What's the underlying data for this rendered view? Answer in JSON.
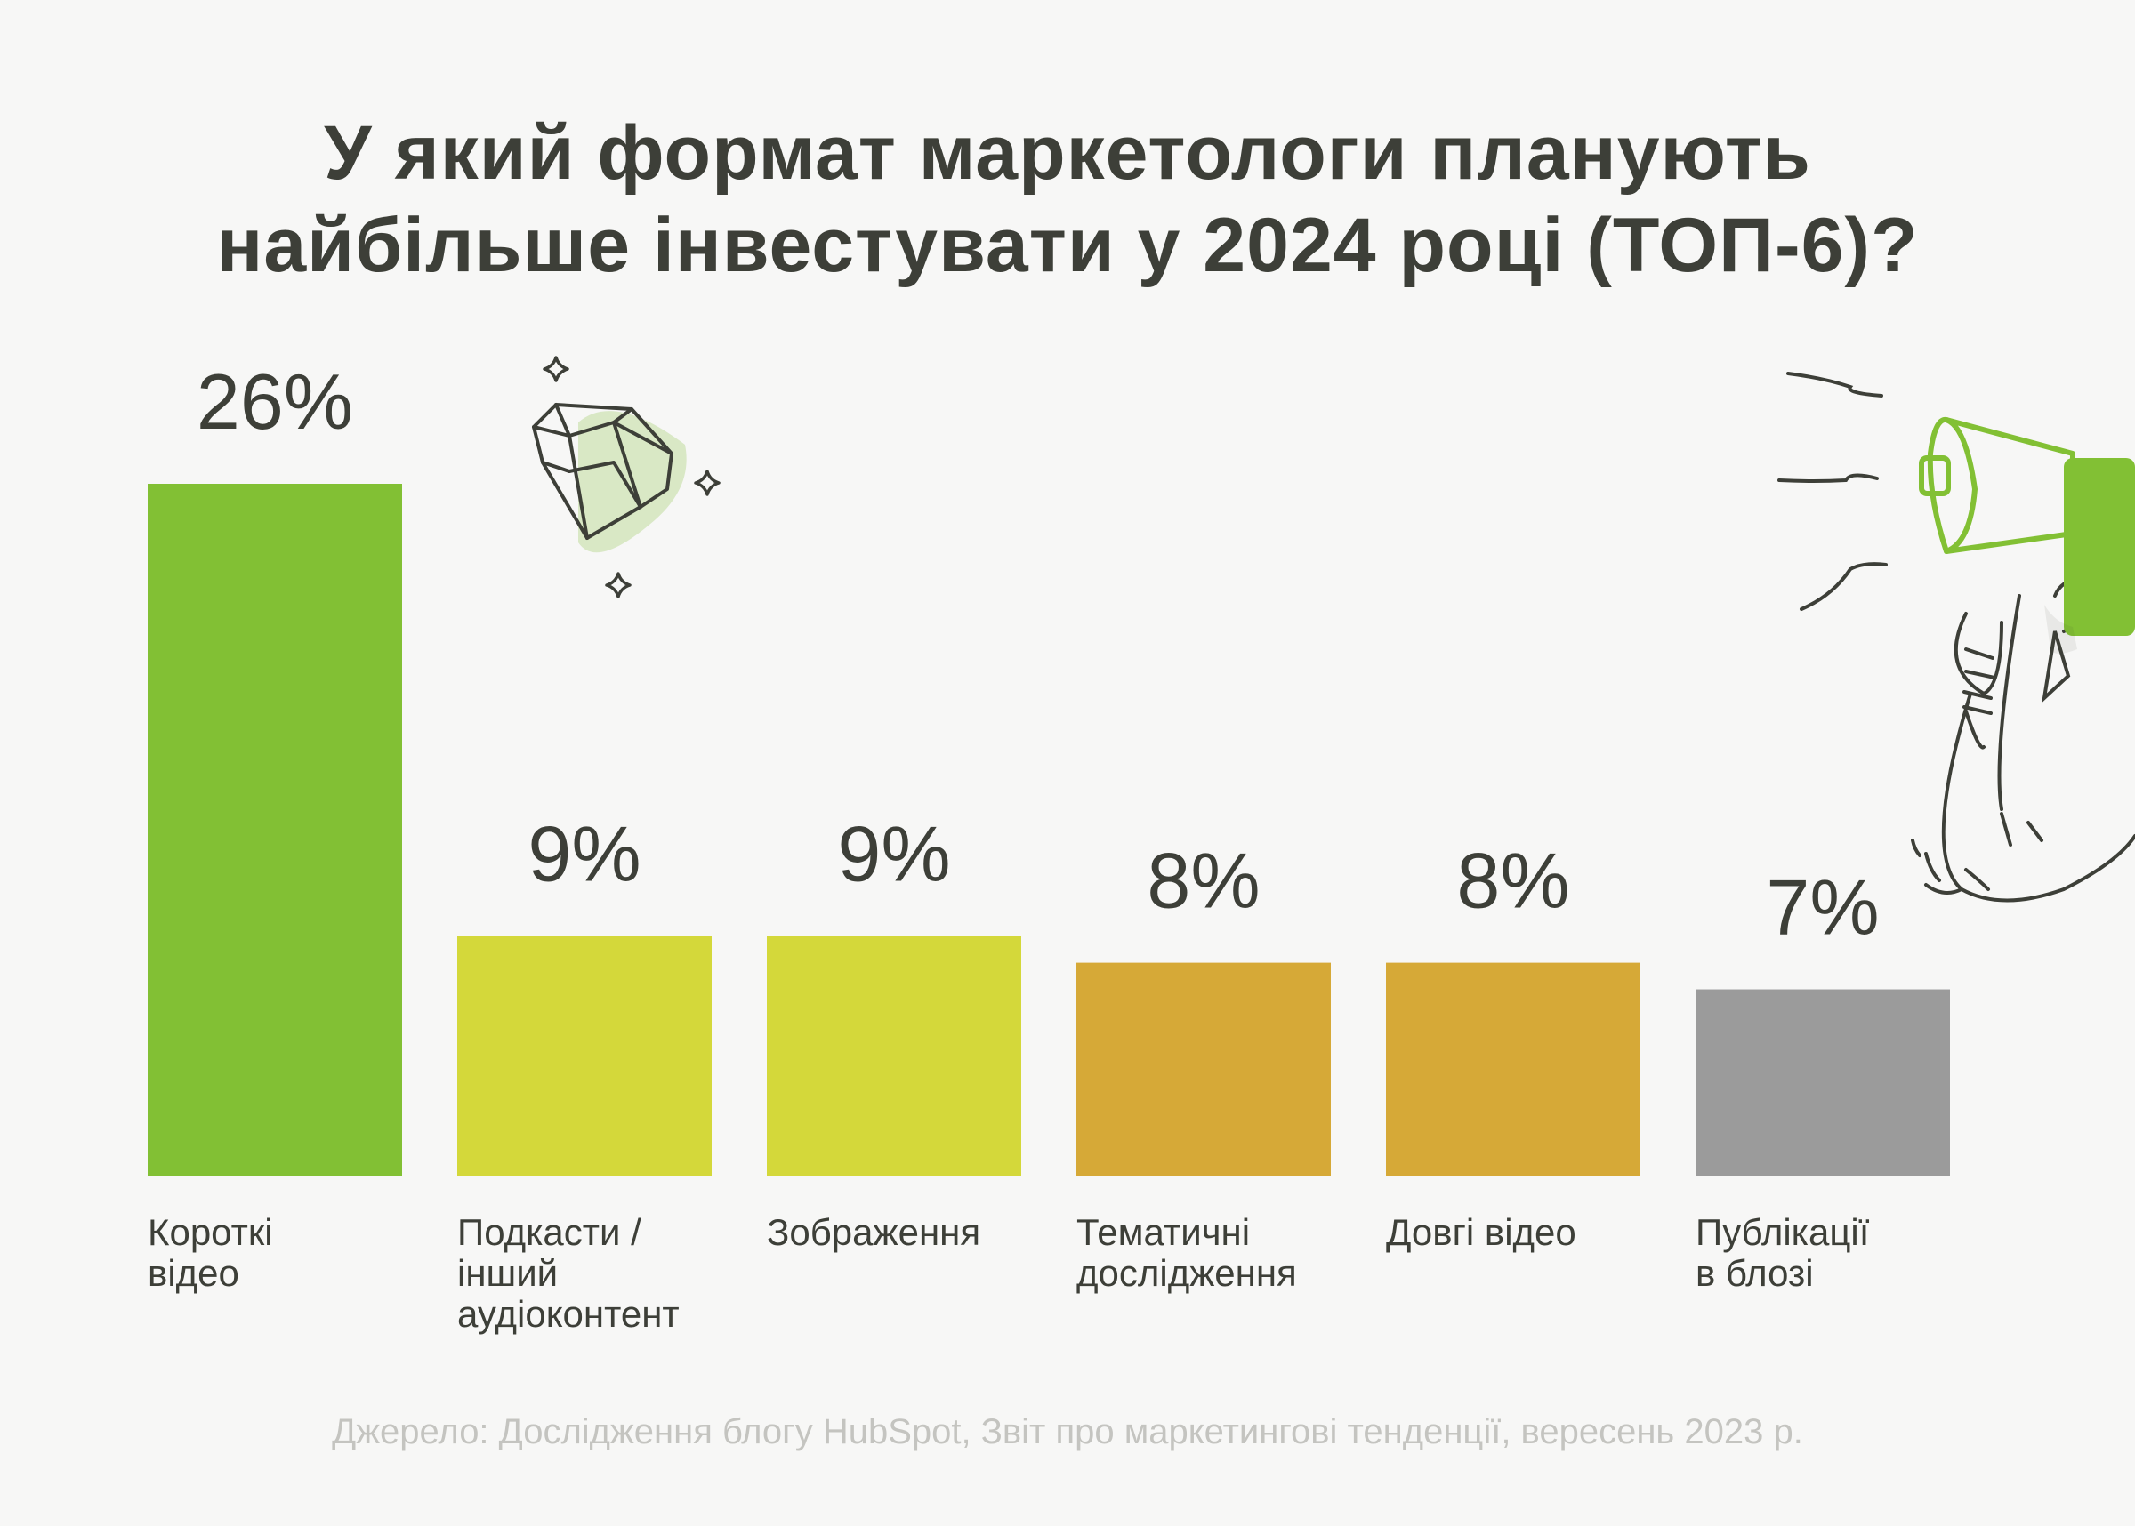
{
  "title_lines": [
    "У який формат маркетологи планують",
    "найбільше інвестувати у 2024 році (ТОП-6)?"
  ],
  "source": "Джерело: Дослідження блогу HubSpot, Звіт про маркетингові тенденції, вересень 2023 р.",
  "chart_data": {
    "type": "bar",
    "title": "У який формат маркетологи планують найбільше інвестувати у 2024 році (ТОП-6)?",
    "categories": [
      [
        "Короткі",
        "відео"
      ],
      [
        "Подкасти /",
        "інший",
        "аудіоконтент"
      ],
      [
        "Зображення"
      ],
      [
        "Тематичні",
        "дослідження"
      ],
      [
        "Довгі відео"
      ],
      [
        "Публікації",
        "в блозі"
      ]
    ],
    "values": [
      26,
      9,
      9,
      8,
      8,
      7
    ],
    "value_labels": [
      "26%",
      "9%",
      "9%",
      "8%",
      "8%",
      "7%"
    ],
    "colors": [
      "#82c034",
      "#d4d83a",
      "#d4d83a",
      "#d6a937",
      "#d6a937",
      "#9b9b9b"
    ],
    "ylim": [
      0,
      26
    ],
    "grid": false,
    "xlabel": "",
    "ylabel": ""
  },
  "decorations": {
    "diamond": "diamond-icon",
    "megaphone": "megaphone-icon",
    "line_color": "#3d3f38",
    "accent_color": "#82c034"
  }
}
